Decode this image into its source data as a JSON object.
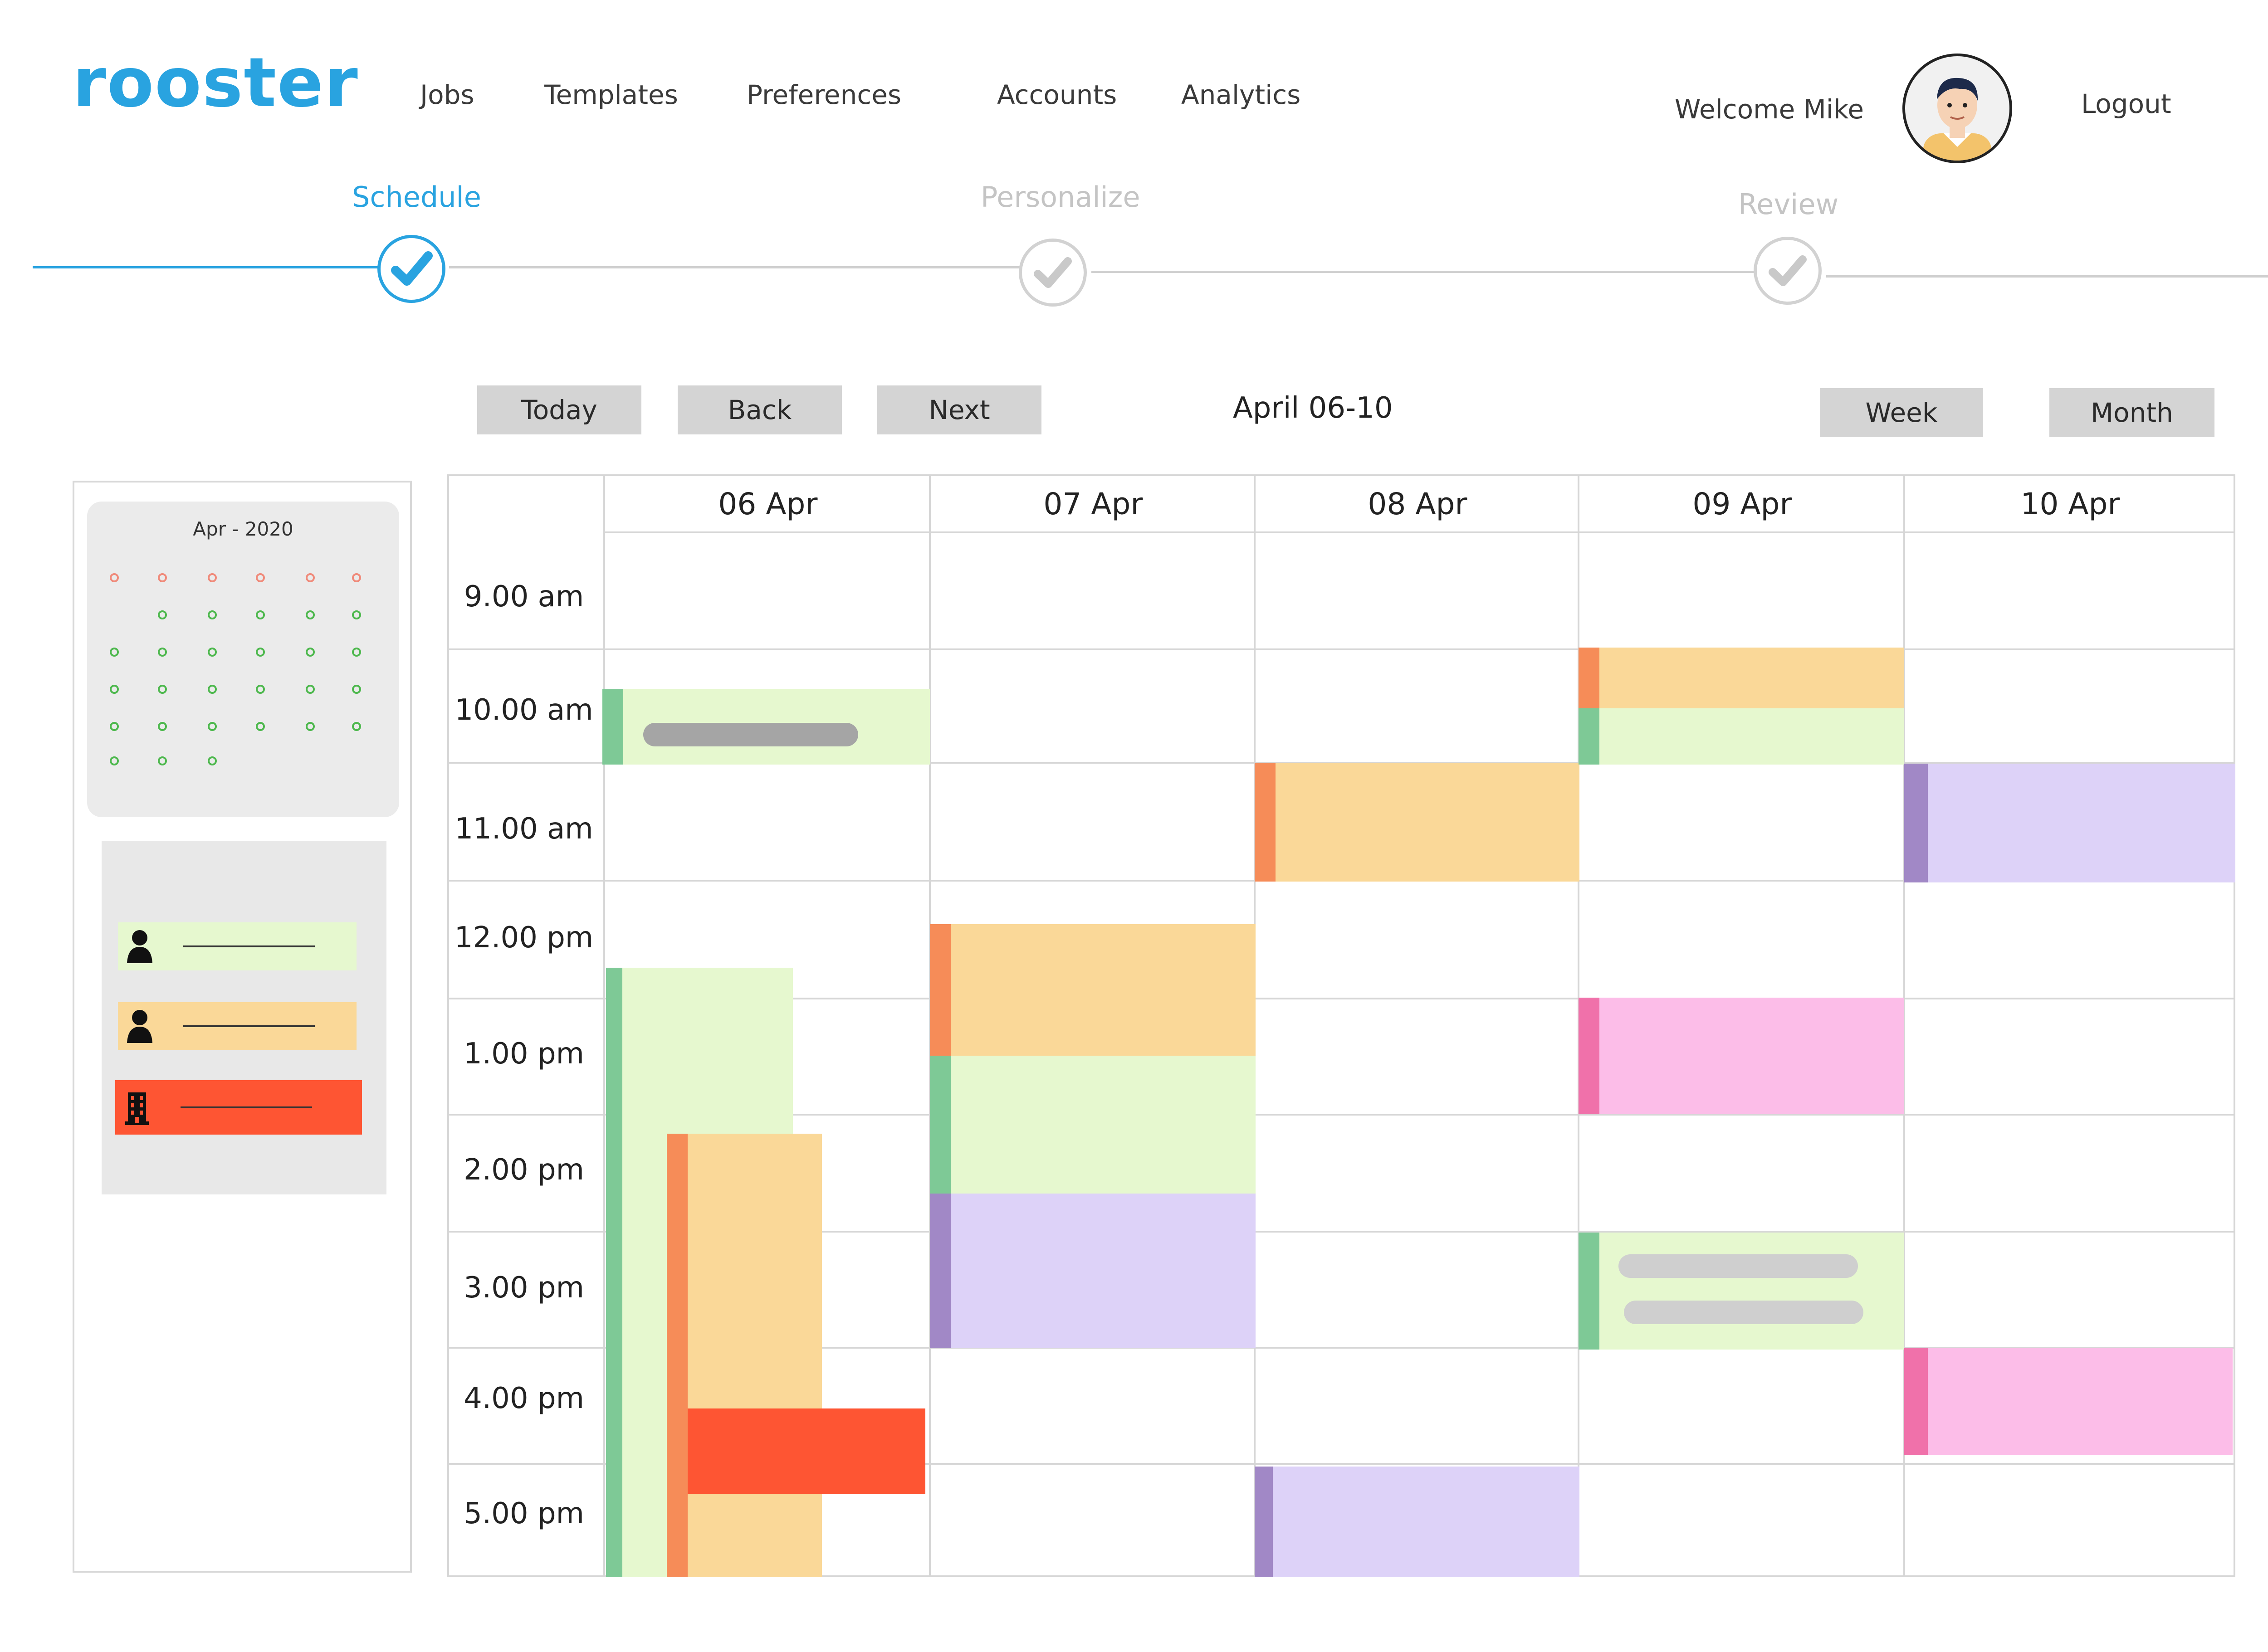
{
  "app": {
    "logo": "rooster"
  },
  "nav": {
    "items": [
      {
        "label": "Jobs"
      },
      {
        "label": "Templates"
      },
      {
        "label": "Preferences"
      },
      {
        "label": "Accounts"
      },
      {
        "label": "Analytics"
      }
    ],
    "welcome": "Welcome Mike",
    "logout": "Logout"
  },
  "stepper": {
    "steps": [
      {
        "label": "Schedule",
        "state": "active"
      },
      {
        "label": "Personalize",
        "state": "inactive"
      },
      {
        "label": "Review",
        "state": "inactive"
      }
    ]
  },
  "toolbar": {
    "today": "Today",
    "back": "Back",
    "next": "Next",
    "range": "April 06-10",
    "week": "Week",
    "month": "Month"
  },
  "sidebar": {
    "mini_calendar_title": "Apr - 2020",
    "legend": [
      {
        "icon": "person-icon",
        "color": "#e6f8cf"
      },
      {
        "icon": "person-icon",
        "color": "#fad898"
      },
      {
        "icon": "building-icon",
        "color": "#fe5533"
      }
    ]
  },
  "calendar": {
    "days": [
      "06 Apr",
      "07 Apr",
      "08 Apr",
      "09 Apr",
      "10 Apr"
    ],
    "times": [
      "9.00 am",
      "10.00 am",
      "11.00 am",
      "12.00 pm",
      "1.00 pm",
      "2.00 pm",
      "3.00 pm",
      "4.00 pm",
      "5.00 pm"
    ]
  },
  "colors": {
    "accent": "#29a3e0",
    "green": "#e6f8cf",
    "orange": "#fad898",
    "purple": "#ddd2f8",
    "pink": "#fcbde8",
    "red": "#fe5533"
  }
}
